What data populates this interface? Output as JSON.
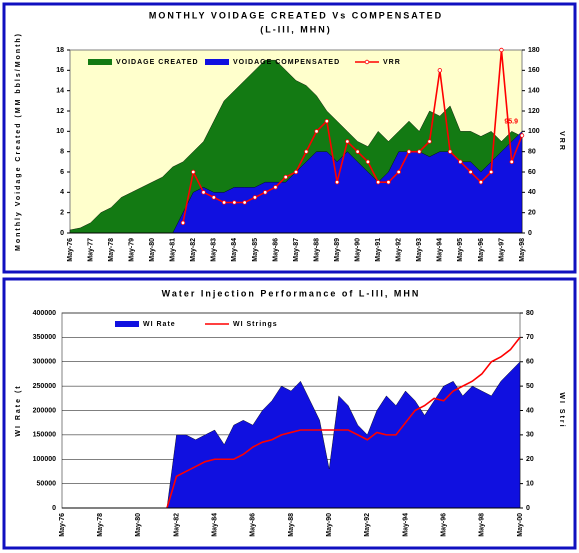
{
  "chart_data": [
    {
      "type": "combo",
      "title": "MONTHLY VOIDAGE CREATED Vs COMPENSATED",
      "subtitle": "(L-III, MHN)",
      "y_label": "Monthly Voidage Created (MM bbls/Month)",
      "y2_label": "VRR",
      "annotations": [
        {
          "text": "95.9"
        }
      ],
      "grid": false,
      "plot_color": "#ffffcc",
      "categories": [
        "May-76",
        null,
        "May-77",
        null,
        "May-78",
        null,
        "May-79",
        null,
        "May-80",
        null,
        "May-81",
        null,
        "May-82",
        null,
        "May-83",
        null,
        "May-84",
        null,
        "May-85",
        null,
        "May-86",
        null,
        "May-87",
        null,
        "May-88",
        null,
        "May-89",
        null,
        "May-90",
        null,
        "May-91",
        null,
        "May-92",
        null,
        "May-93",
        null,
        "May-94",
        null,
        "May-95",
        null,
        "May-96",
        null,
        "May-97",
        null,
        "May-98"
      ],
      "ylim": [
        0,
        18
      ],
      "yticks": [
        0,
        2,
        4,
        6,
        8,
        10,
        12,
        14,
        16,
        18
      ],
      "y2lim": [
        0,
        180
      ],
      "y2ticks": [
        0,
        20,
        40,
        60,
        80,
        100,
        120,
        140,
        160,
        180
      ],
      "series": [
        {
          "name": "VOIDAGE CREATED",
          "type": "area",
          "color": "#137a13",
          "values": [
            0.3,
            0.5,
            1,
            2,
            2.5,
            3.5,
            4,
            4.5,
            5,
            5.5,
            6.5,
            7,
            8,
            9,
            11,
            13,
            14,
            15,
            16,
            17,
            17,
            16,
            15,
            14.5,
            13.5,
            12,
            11,
            10,
            9,
            8.5,
            10,
            9,
            10,
            11,
            10,
            12,
            11.5,
            12.5,
            10,
            10,
            9.5,
            10,
            9,
            10,
            9.5
          ]
        },
        {
          "name": "VOIDAGE COMPENSATED",
          "type": "area",
          "color": "#1010e0",
          "values": [
            0,
            0,
            0,
            0,
            0,
            0,
            0,
            0,
            0,
            0,
            0,
            2,
            4,
            4.5,
            4,
            4,
            4.5,
            4.5,
            4.5,
            5,
            5,
            5,
            6,
            7,
            8,
            8,
            7,
            8,
            7,
            6,
            5,
            6,
            8,
            8,
            8,
            7.5,
            8,
            8,
            7,
            7,
            6,
            7,
            8,
            9,
            10
          ]
        },
        {
          "name": "VRR",
          "type": "line",
          "axis": "y2",
          "color": "#ff0000",
          "values": [
            null,
            null,
            null,
            null,
            null,
            null,
            null,
            null,
            null,
            null,
            null,
            10,
            60,
            40,
            35,
            30,
            30,
            30,
            35,
            40,
            45,
            55,
            60,
            80,
            100,
            110,
            50,
            90,
            80,
            70,
            50,
            50,
            60,
            80,
            80,
            90,
            160,
            80,
            70,
            60,
            50,
            60,
            180,
            70,
            95.9
          ]
        }
      ]
    },
    {
      "type": "combo",
      "title": "Water Injection Performance of L-III, MHN",
      "y_label": "WI Rate (t",
      "y2_label": "WI Stri",
      "grid": true,
      "plot_color": "#ffffff",
      "categories": [
        "May-76",
        null,
        null,
        null,
        "May-78",
        null,
        null,
        null,
        "May-80",
        null,
        null,
        null,
        "May-82",
        null,
        null,
        null,
        "May-84",
        null,
        null,
        null,
        "May-86",
        null,
        null,
        null,
        "May-88",
        null,
        null,
        null,
        "May-90",
        null,
        null,
        null,
        "May-92",
        null,
        null,
        null,
        "May-94",
        null,
        null,
        null,
        "May-96",
        null,
        null,
        null,
        "May-98",
        null,
        null,
        null,
        "May-00"
      ],
      "ylim": [
        0,
        400000
      ],
      "yticks": [
        0,
        50000,
        100000,
        150000,
        200000,
        250000,
        300000,
        350000,
        400000
      ],
      "y2lim": [
        0,
        80
      ],
      "y2ticks": [
        0,
        10,
        20,
        30,
        40,
        50,
        60,
        70,
        80
      ],
      "series": [
        {
          "name": "WI Rate",
          "type": "area",
          "color": "#1010e0",
          "values": [
            0,
            0,
            0,
            0,
            0,
            0,
            0,
            0,
            0,
            0,
            0,
            0,
            150000,
            150000,
            140000,
            150000,
            160000,
            130000,
            170000,
            180000,
            170000,
            200000,
            220000,
            250000,
            240000,
            260000,
            220000,
            180000,
            80000,
            230000,
            210000,
            170000,
            150000,
            200000,
            230000,
            210000,
            240000,
            220000,
            190000,
            220000,
            250000,
            260000,
            230000,
            250000,
            240000,
            230000,
            260000,
            280000,
            300000
          ]
        },
        {
          "name": "WI Strings",
          "type": "line",
          "axis": "y2",
          "color": "#ff0000",
          "values": [
            null,
            null,
            null,
            null,
            null,
            null,
            null,
            null,
            null,
            null,
            null,
            0,
            13,
            15,
            17,
            19,
            20,
            20,
            20,
            22,
            25,
            27,
            28,
            30,
            31,
            32,
            32,
            32,
            32,
            32,
            32,
            30,
            28,
            31,
            30,
            30,
            35,
            40,
            42,
            45,
            44,
            48,
            50,
            52,
            55,
            60,
            62,
            65,
            70
          ]
        }
      ]
    }
  ]
}
